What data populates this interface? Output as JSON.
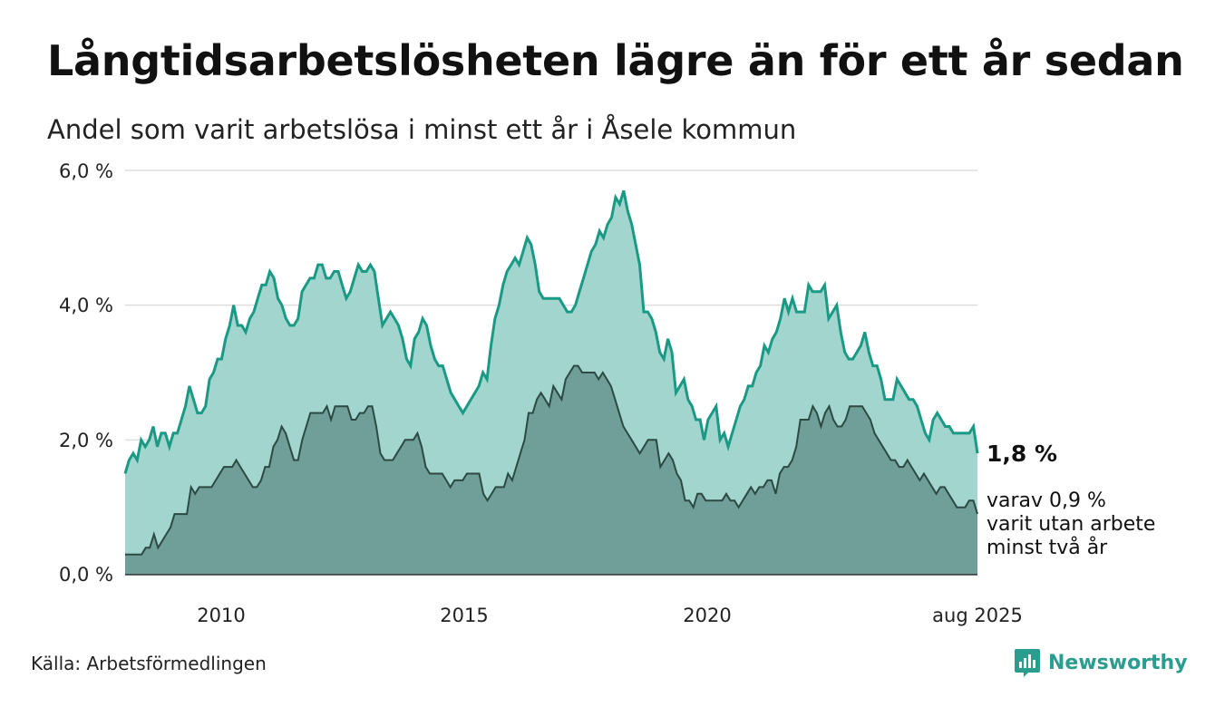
{
  "title": "Långtidsarbetslösheten lägre än för ett år sedan",
  "subtitle": "Andel som varit arbetslösa i minst ett år i Åsele kommun",
  "source": "Källa: Arbetsförmedlingen",
  "brand": {
    "name": "Newsworthy",
    "icon": "newsworthy-logo-icon",
    "color": "#2a9d8f"
  },
  "colors": {
    "main_line": "#1a9985",
    "main_fill": "#a3d5cf",
    "sub_line": "#2b4a44",
    "sub_fill": "#6f9f98",
    "grid": "#dddddd"
  },
  "chart_data": {
    "type": "area",
    "x_start": "2008-01",
    "x_end": "2025-08",
    "x_ticks": [
      "2010",
      "2015",
      "2020",
      "aug 2025"
    ],
    "y_ticks": [
      "0,0 %",
      "2,0 %",
      "4,0 %",
      "6,0 %"
    ],
    "ylim": [
      0,
      6
    ],
    "grid": true,
    "end_labels": {
      "main": "1,8 %",
      "sub": [
        "varav 0,9 %",
        "varit utan arbete",
        "minst två år"
      ]
    },
    "series": [
      {
        "values": [
          1.5,
          1.7,
          1.8,
          1.7,
          2.0,
          1.9,
          2.0,
          2.2,
          1.9,
          2.1,
          2.1,
          1.9,
          2.1,
          2.1,
          2.3,
          2.5,
          2.8,
          2.6,
          2.4,
          2.4,
          2.5,
          2.9,
          3.0,
          3.2,
          3.2,
          3.5,
          3.7,
          4.0,
          3.7,
          3.7,
          3.6,
          3.8,
          3.9,
          4.1,
          4.3,
          4.3,
          4.5,
          4.4,
          4.1,
          4.0,
          3.8,
          3.7,
          3.7,
          3.8,
          4.2,
          4.3,
          4.4,
          4.4,
          4.6,
          4.6,
          4.4,
          4.4,
          4.5,
          4.5,
          4.3,
          4.1,
          4.2,
          4.4,
          4.6,
          4.5,
          4.5,
          4.6,
          4.5,
          4.1,
          3.7,
          3.8,
          3.9,
          3.8,
          3.7,
          3.5,
          3.2,
          3.1,
          3.5,
          3.6,
          3.8,
          3.7,
          3.4,
          3.2,
          3.1,
          3.1,
          2.9,
          2.7,
          2.6,
          2.5,
          2.4,
          2.5,
          2.6,
          2.7,
          2.8,
          3.0,
          2.9,
          3.4,
          3.8,
          4.0,
          4.3,
          4.5,
          4.6,
          4.7,
          4.6,
          4.8,
          5.0,
          4.9,
          4.6,
          4.2,
          4.1,
          4.1,
          4.1,
          4.1,
          4.1,
          4.0,
          3.9,
          3.9,
          4.0,
          4.2,
          4.4,
          4.6,
          4.8,
          4.9,
          5.1,
          5.0,
          5.2,
          5.3,
          5.6,
          5.5,
          5.7,
          5.4,
          5.2,
          4.9,
          4.6,
          3.9,
          3.9,
          3.8,
          3.6,
          3.3,
          3.2,
          3.5,
          3.3,
          2.7,
          2.8,
          2.9,
          2.6,
          2.5,
          2.3,
          2.3,
          2.0,
          2.3,
          2.4,
          2.5,
          2.0,
          2.1,
          1.9,
          2.1,
          2.3,
          2.5,
          2.6,
          2.8,
          2.8,
          3.0,
          3.1,
          3.4,
          3.3,
          3.5,
          3.6,
          3.8,
          4.1,
          3.9,
          4.1,
          3.9,
          3.9,
          3.9,
          4.3,
          4.2,
          4.2,
          4.2,
          4.3,
          3.8,
          3.9,
          4.0,
          3.6,
          3.3,
          3.2,
          3.2,
          3.3,
          3.4,
          3.6,
          3.3,
          3.1,
          3.1,
          2.9,
          2.6,
          2.6,
          2.6,
          2.9,
          2.8,
          2.7,
          2.6,
          2.6,
          2.5,
          2.3,
          2.1,
          2.0,
          2.3,
          2.4,
          2.3,
          2.2,
          2.2,
          2.1,
          2.1,
          2.1,
          2.1,
          2.1,
          2.2,
          1.8
        ]
      },
      {
        "name": "varav 0,9 %",
        "values": [
          0.3,
          0.3,
          0.3,
          0.3,
          0.3,
          0.4,
          0.4,
          0.6,
          0.4,
          0.5,
          0.6,
          0.7,
          0.9,
          0.9,
          0.9,
          0.9,
          1.3,
          1.2,
          1.3,
          1.3,
          1.3,
          1.3,
          1.4,
          1.5,
          1.6,
          1.6,
          1.6,
          1.7,
          1.6,
          1.5,
          1.4,
          1.3,
          1.3,
          1.4,
          1.6,
          1.6,
          1.9,
          2.0,
          2.2,
          2.1,
          1.9,
          1.7,
          1.7,
          2.0,
          2.2,
          2.4,
          2.4,
          2.4,
          2.4,
          2.5,
          2.3,
          2.5,
          2.5,
          2.5,
          2.5,
          2.3,
          2.3,
          2.4,
          2.4,
          2.5,
          2.5,
          2.2,
          1.8,
          1.7,
          1.7,
          1.7,
          1.8,
          1.9,
          2.0,
          2.0,
          2.0,
          2.1,
          1.9,
          1.6,
          1.5,
          1.5,
          1.5,
          1.5,
          1.4,
          1.3,
          1.4,
          1.4,
          1.4,
          1.5,
          1.5,
          1.5,
          1.5,
          1.2,
          1.1,
          1.2,
          1.3,
          1.3,
          1.3,
          1.5,
          1.4,
          1.6,
          1.8,
          2.0,
          2.4,
          2.4,
          2.6,
          2.7,
          2.6,
          2.5,
          2.8,
          2.7,
          2.6,
          2.9,
          3.0,
          3.1,
          3.1,
          3.0,
          3.0,
          3.0,
          3.0,
          2.9,
          3.0,
          2.9,
          2.8,
          2.6,
          2.4,
          2.2,
          2.1,
          2.0,
          1.9,
          1.8,
          1.9,
          2.0,
          2.0,
          2.0,
          1.6,
          1.7,
          1.8,
          1.7,
          1.5,
          1.4,
          1.1,
          1.1,
          1.0,
          1.2,
          1.2,
          1.1,
          1.1,
          1.1,
          1.1,
          1.1,
          1.2,
          1.1,
          1.1,
          1.0,
          1.1,
          1.2,
          1.3,
          1.2,
          1.3,
          1.3,
          1.4,
          1.4,
          1.2,
          1.5,
          1.6,
          1.6,
          1.7,
          1.9,
          2.3,
          2.3,
          2.3,
          2.5,
          2.4,
          2.2,
          2.4,
          2.5,
          2.3,
          2.2,
          2.2,
          2.3,
          2.5,
          2.5,
          2.5,
          2.5,
          2.4,
          2.3,
          2.1,
          2.0,
          1.9,
          1.8,
          1.7,
          1.7,
          1.6,
          1.6,
          1.7,
          1.6,
          1.5,
          1.4,
          1.5,
          1.4,
          1.3,
          1.2,
          1.3,
          1.3,
          1.2,
          1.1,
          1.0,
          1.0,
          1.0,
          1.1,
          1.1,
          0.9
        ]
      }
    ]
  }
}
